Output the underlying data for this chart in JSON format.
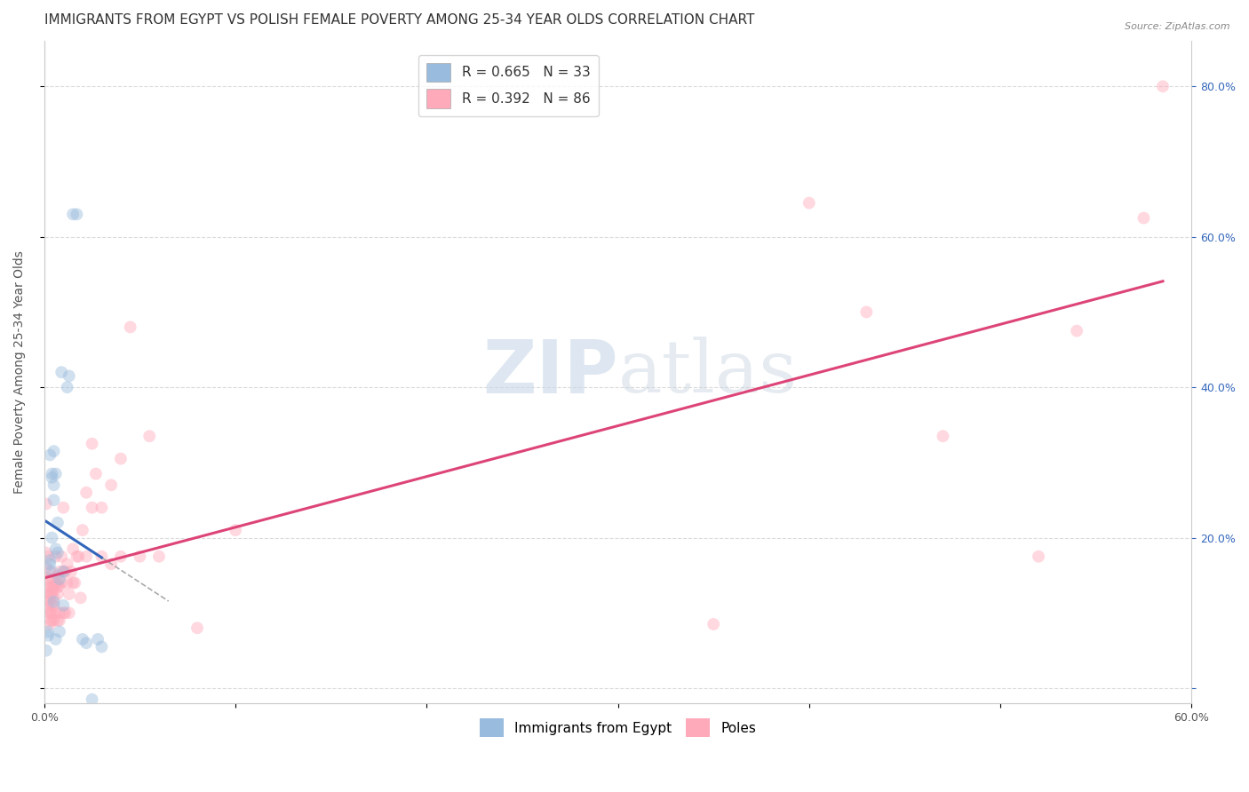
{
  "title": "IMMIGRANTS FROM EGYPT VS POLISH FEMALE POVERTY AMONG 25-34 YEAR OLDS CORRELATION CHART",
  "source": "Source: ZipAtlas.com",
  "ylabel": "Female Poverty Among 25-34 Year Olds",
  "xlim": [
    0.0,
    0.6
  ],
  "ylim": [
    -0.02,
    0.86
  ],
  "blue_color": "#99BBDD",
  "pink_color": "#FFAABB",
  "blue_line_color": "#3366BB",
  "pink_line_color": "#DD4477",
  "legend_blue_label": "R = 0.665   N = 33",
  "legend_pink_label": "R = 0.392   N = 86",
  "watermark_zip": "ZIP",
  "watermark_atlas": "atlas",
  "grid_color": "#CCCCCC",
  "background_color": "#FFFFFF",
  "blue_scatter_x": [
    0.001,
    0.002,
    0.002,
    0.003,
    0.003,
    0.003,
    0.004,
    0.004,
    0.004,
    0.004,
    0.005,
    0.005,
    0.005,
    0.005,
    0.006,
    0.006,
    0.006,
    0.007,
    0.007,
    0.008,
    0.008,
    0.009,
    0.01,
    0.01,
    0.012,
    0.013,
    0.015,
    0.017,
    0.02,
    0.022,
    0.025,
    0.028,
    0.03
  ],
  "blue_scatter_y": [
    0.05,
    0.075,
    0.07,
    0.17,
    0.165,
    0.31,
    0.285,
    0.28,
    0.2,
    0.155,
    0.315,
    0.27,
    0.25,
    0.115,
    0.065,
    0.285,
    0.185,
    0.22,
    0.18,
    0.145,
    0.075,
    0.42,
    0.155,
    0.11,
    0.4,
    0.415,
    0.63,
    0.63,
    0.065,
    0.06,
    -0.015,
    0.065,
    0.055
  ],
  "pink_scatter_x": [
    0.001,
    0.001,
    0.001,
    0.001,
    0.002,
    0.002,
    0.002,
    0.002,
    0.002,
    0.002,
    0.003,
    0.003,
    0.003,
    0.003,
    0.003,
    0.003,
    0.003,
    0.003,
    0.004,
    0.004,
    0.004,
    0.004,
    0.004,
    0.004,
    0.004,
    0.005,
    0.005,
    0.005,
    0.005,
    0.005,
    0.006,
    0.006,
    0.006,
    0.007,
    0.007,
    0.007,
    0.007,
    0.007,
    0.008,
    0.008,
    0.008,
    0.008,
    0.009,
    0.009,
    0.01,
    0.01,
    0.01,
    0.011,
    0.011,
    0.012,
    0.012,
    0.013,
    0.013,
    0.014,
    0.015,
    0.015,
    0.016,
    0.017,
    0.018,
    0.019,
    0.02,
    0.022,
    0.022,
    0.025,
    0.025,
    0.027,
    0.03,
    0.03,
    0.035,
    0.035,
    0.04,
    0.04,
    0.045,
    0.05,
    0.055,
    0.06,
    0.08,
    0.1,
    0.35,
    0.4,
    0.43,
    0.47,
    0.52,
    0.54,
    0.575,
    0.585
  ],
  "pink_scatter_y": [
    0.245,
    0.18,
    0.16,
    0.115,
    0.175,
    0.145,
    0.145,
    0.13,
    0.12,
    0.105,
    0.155,
    0.135,
    0.125,
    0.115,
    0.1,
    0.1,
    0.09,
    0.085,
    0.145,
    0.135,
    0.13,
    0.125,
    0.11,
    0.1,
    0.09,
    0.135,
    0.13,
    0.12,
    0.11,
    0.09,
    0.175,
    0.14,
    0.1,
    0.15,
    0.14,
    0.135,
    0.125,
    0.09,
    0.155,
    0.135,
    0.1,
    0.09,
    0.175,
    0.14,
    0.24,
    0.155,
    0.1,
    0.155,
    0.1,
    0.165,
    0.14,
    0.125,
    0.1,
    0.155,
    0.185,
    0.14,
    0.14,
    0.175,
    0.175,
    0.12,
    0.21,
    0.26,
    0.175,
    0.325,
    0.24,
    0.285,
    0.24,
    0.175,
    0.27,
    0.165,
    0.305,
    0.175,
    0.48,
    0.175,
    0.335,
    0.175,
    0.08,
    0.21,
    0.085,
    0.645,
    0.5,
    0.335,
    0.175,
    0.475,
    0.625,
    0.8
  ],
  "figsize": [
    14.06,
    8.92
  ],
  "dpi": 100,
  "marker_size": 100,
  "marker_alpha": 0.45,
  "title_fontsize": 11,
  "axis_label_fontsize": 10,
  "tick_fontsize": 9,
  "legend_fontsize": 11
}
